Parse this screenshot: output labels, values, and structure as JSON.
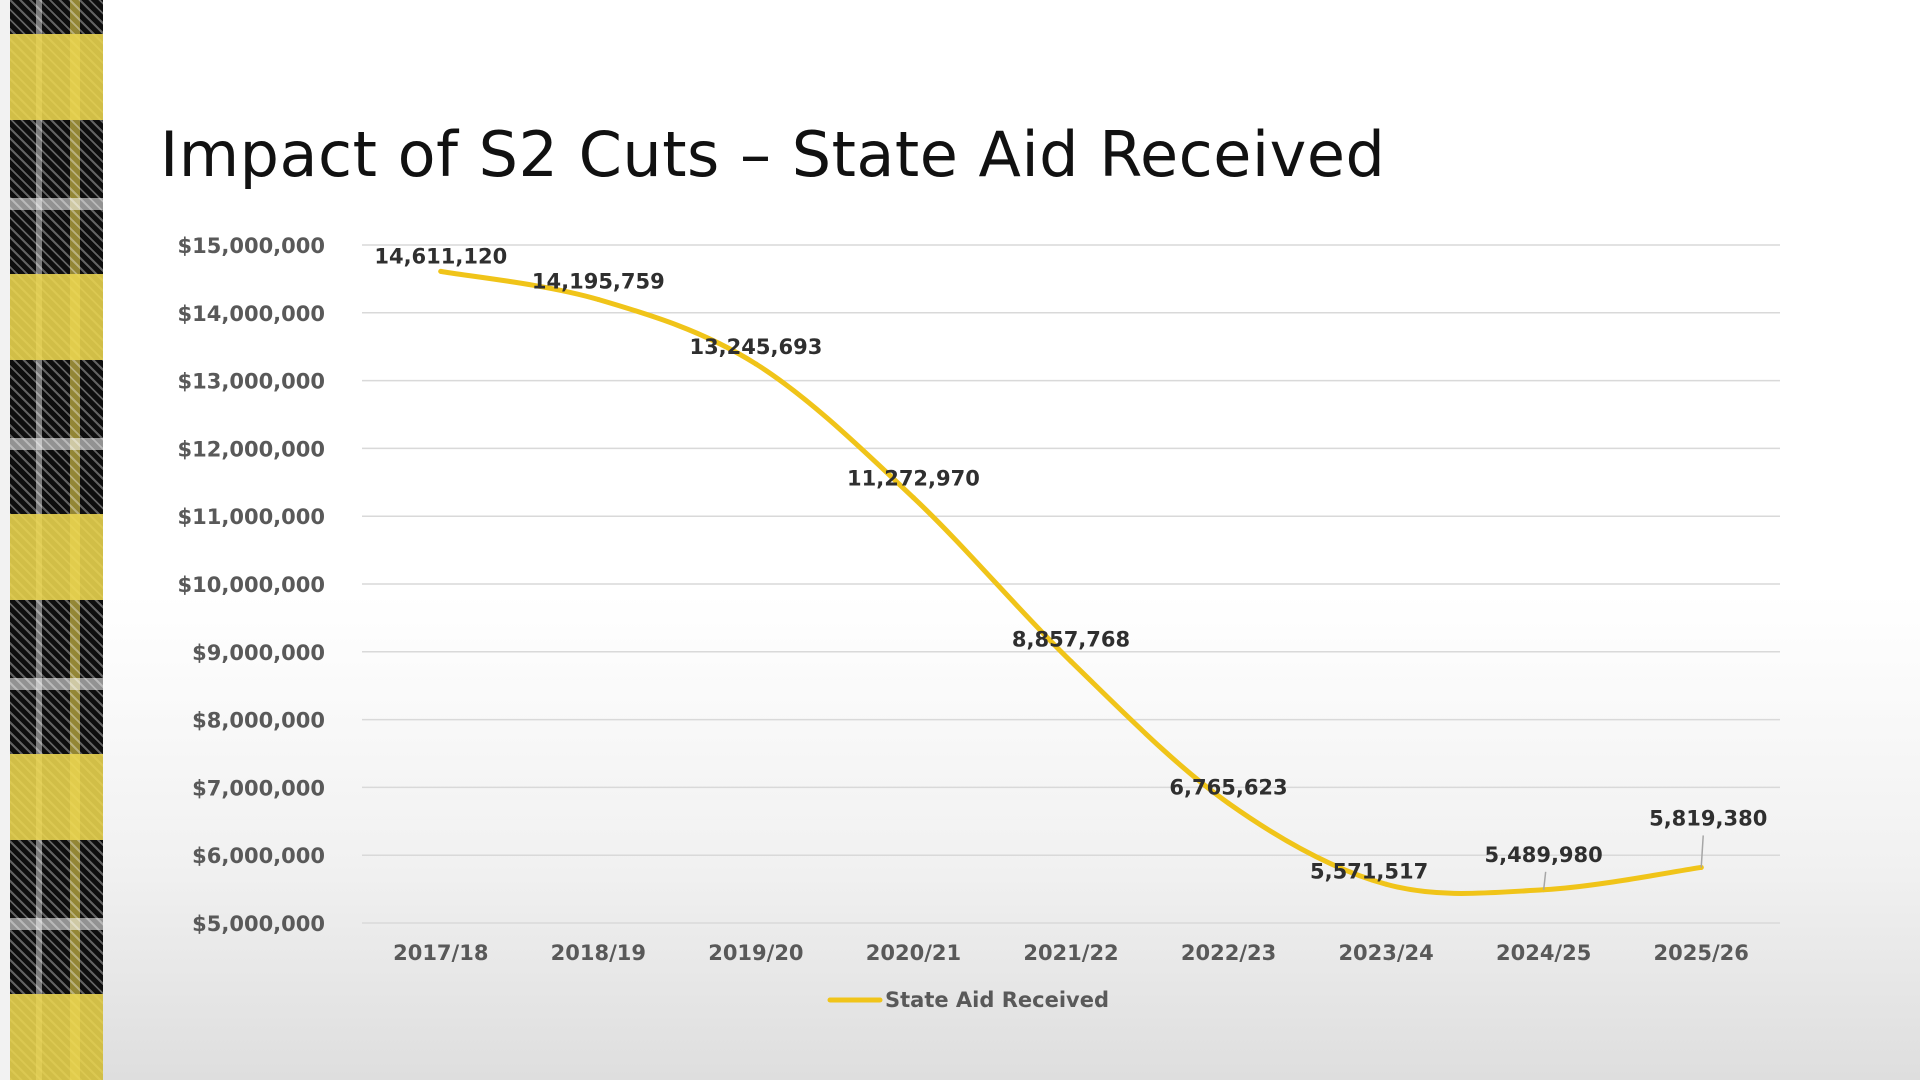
{
  "slide": {
    "title": "Impact of S2 Cuts – State Aid Received"
  },
  "chart_data": {
    "type": "line",
    "title": "Impact of S2 Cuts – State Aid Received",
    "xlabel": "",
    "ylabel": "",
    "categories": [
      "2017/18",
      "2018/19",
      "2019/20",
      "2020/21",
      "2021/22",
      "2022/23",
      "2023/24",
      "2024/25",
      "2025/26"
    ],
    "series": [
      {
        "name": "State Aid Received",
        "color": "#f0c419",
        "values": [
          14611120,
          14195759,
          13245693,
          11272970,
          8857768,
          6765623,
          5571517,
          5489980,
          5819380
        ],
        "labels": [
          "14,611,120",
          "14,195,759",
          "13,245,693",
          "11,272,970",
          "8,857,768",
          "6,765,623",
          "5,571,517",
          "5,489,980",
          "5,819,380"
        ]
      }
    ],
    "ylim": [
      5000000,
      15000000
    ],
    "yticks": [
      5000000,
      6000000,
      7000000,
      8000000,
      9000000,
      10000000,
      11000000,
      12000000,
      13000000,
      14000000,
      15000000
    ],
    "ytick_labels": [
      "$5,000,000",
      "$6,000,000",
      "$7,000,000",
      "$8,000,000",
      "$9,000,000",
      "$10,000,000",
      "$11,000,000",
      "$12,000,000",
      "$13,000,000",
      "$14,000,000",
      "$15,000,000"
    ],
    "grid": true,
    "legend": "bottom-center",
    "gridline_color": "#d9d9d9",
    "label_leader_color": "#a6a6a6"
  }
}
